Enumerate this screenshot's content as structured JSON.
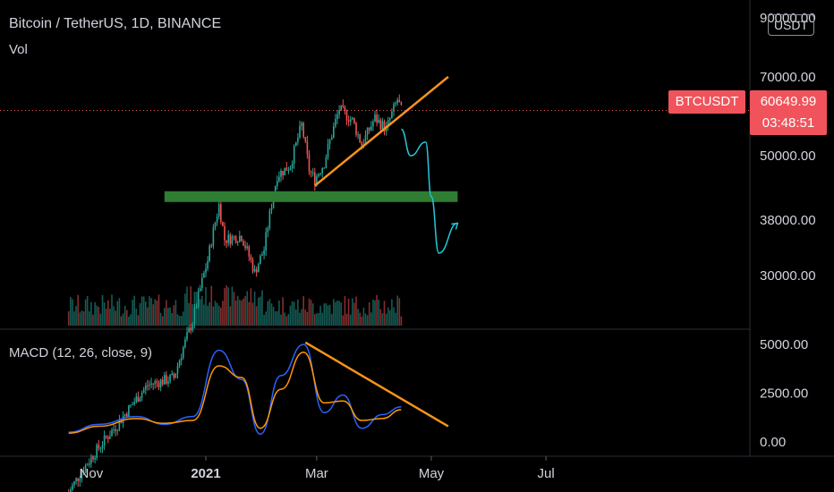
{
  "header": {
    "title": "Bitcoin / TetherUS, 1D, BINANCE",
    "volume_label": "Vol",
    "currency_button": "USDT"
  },
  "price_tag": {
    "symbol": "BTCUSDT",
    "price": "60649.99",
    "countdown": "03:48:51",
    "color": "#f0535b"
  },
  "colors": {
    "up": "#26a69a",
    "down": "#ef5350",
    "trendline": "#f7931a",
    "support": "#2e7d32",
    "projection": "#26c6da",
    "macd_line": "#2962ff",
    "signal_line": "#ff9800"
  },
  "chart_data": [
    {
      "type": "candlestick",
      "title": "Bitcoin / TetherUS, 1D, BINANCE",
      "y_axis": {
        "scale": "log",
        "ticks": [
          "90000.00",
          "70000.00",
          "50000.00",
          "38000.00",
          "30000.00"
        ],
        "tick_values": [
          90000,
          70000,
          50000,
          38000,
          30000
        ]
      },
      "x_axis": {
        "ticks": [
          "Nov",
          "2021",
          "Mar",
          "May",
          "Jul"
        ],
        "tick_dates": [
          "2020-11-01",
          "2021-01-01",
          "2021-03-01",
          "2021-05-01",
          "2021-07-01"
        ],
        "range": [
          "2020-10-20",
          "2021-07-20"
        ]
      },
      "close_series": [
        [
          "2020-10-20",
          11900
        ],
        [
          "2020-11-01",
          13800
        ],
        [
          "2020-11-15",
          15900
        ],
        [
          "2020-12-01",
          18800
        ],
        [
          "2020-12-15",
          19400
        ],
        [
          "2020-12-25",
          24700
        ],
        [
          "2021-01-02",
          32000
        ],
        [
          "2021-01-08",
          40500
        ],
        [
          "2021-01-11",
          35000
        ],
        [
          "2021-01-20",
          35500
        ],
        [
          "2021-01-27",
          30400
        ],
        [
          "2021-02-01",
          33500
        ],
        [
          "2021-02-08",
          46000
        ],
        [
          "2021-02-15",
          48000
        ],
        [
          "2021-02-21",
          57000
        ],
        [
          "2021-02-25",
          47000
        ],
        [
          "2021-02-28",
          45200
        ],
        [
          "2021-03-05",
          48500
        ],
        [
          "2021-03-13",
          61000
        ],
        [
          "2021-03-20",
          58100
        ],
        [
          "2021-03-25",
          52300
        ],
        [
          "2021-04-01",
          58700
        ],
        [
          "2021-04-07",
          56000
        ],
        [
          "2021-04-13",
          63500
        ],
        [
          "2021-04-15",
          60649.99
        ]
      ],
      "current_price": 60649.99,
      "annotations": {
        "support_zone": {
          "start": "2020-12-10",
          "end": "2021-05-15",
          "value": 42000
        },
        "rising_trendline": [
          [
            "2021-02-28",
            44000
          ],
          [
            "2021-05-10",
            70000
          ]
        ],
        "projected_path": [
          [
            "2021-04-15",
            56000
          ],
          [
            "2021-04-20",
            50000
          ],
          [
            "2021-04-28",
            53000
          ],
          [
            "2021-05-01",
            42000
          ],
          [
            "2021-05-05",
            33000
          ],
          [
            "2021-05-15",
            37500
          ]
        ]
      }
    },
    {
      "type": "line",
      "title": "MACD (12, 26, close, 9)",
      "y_axis": {
        "ticks": [
          "5000.00",
          "2500.00",
          "0.00"
        ],
        "tick_values": [
          5000,
          2500,
          0
        ]
      },
      "x": [
        "2020-10-20",
        "2020-11-05",
        "2020-11-25",
        "2020-12-10",
        "2020-12-25",
        "2021-01-08",
        "2021-01-20",
        "2021-01-30",
        "2021-02-10",
        "2021-02-22",
        "2021-03-05",
        "2021-03-15",
        "2021-03-25",
        "2021-04-05",
        "2021-04-15"
      ],
      "series": [
        {
          "name": "MACD",
          "values": [
            500,
            900,
            1300,
            900,
            1300,
            4700,
            3200,
            400,
            3400,
            5000,
            1500,
            2400,
            700,
            1400,
            1800
          ]
        },
        {
          "name": "Signal",
          "values": [
            450,
            800,
            1200,
            950,
            1100,
            3900,
            3300,
            700,
            2700,
            4600,
            2000,
            2100,
            1100,
            1200,
            1650
          ]
        }
      ],
      "annotations": {
        "falling_trendline": [
          [
            "2021-02-23",
            5100
          ],
          [
            "2021-05-10",
            800
          ]
        ]
      }
    }
  ]
}
